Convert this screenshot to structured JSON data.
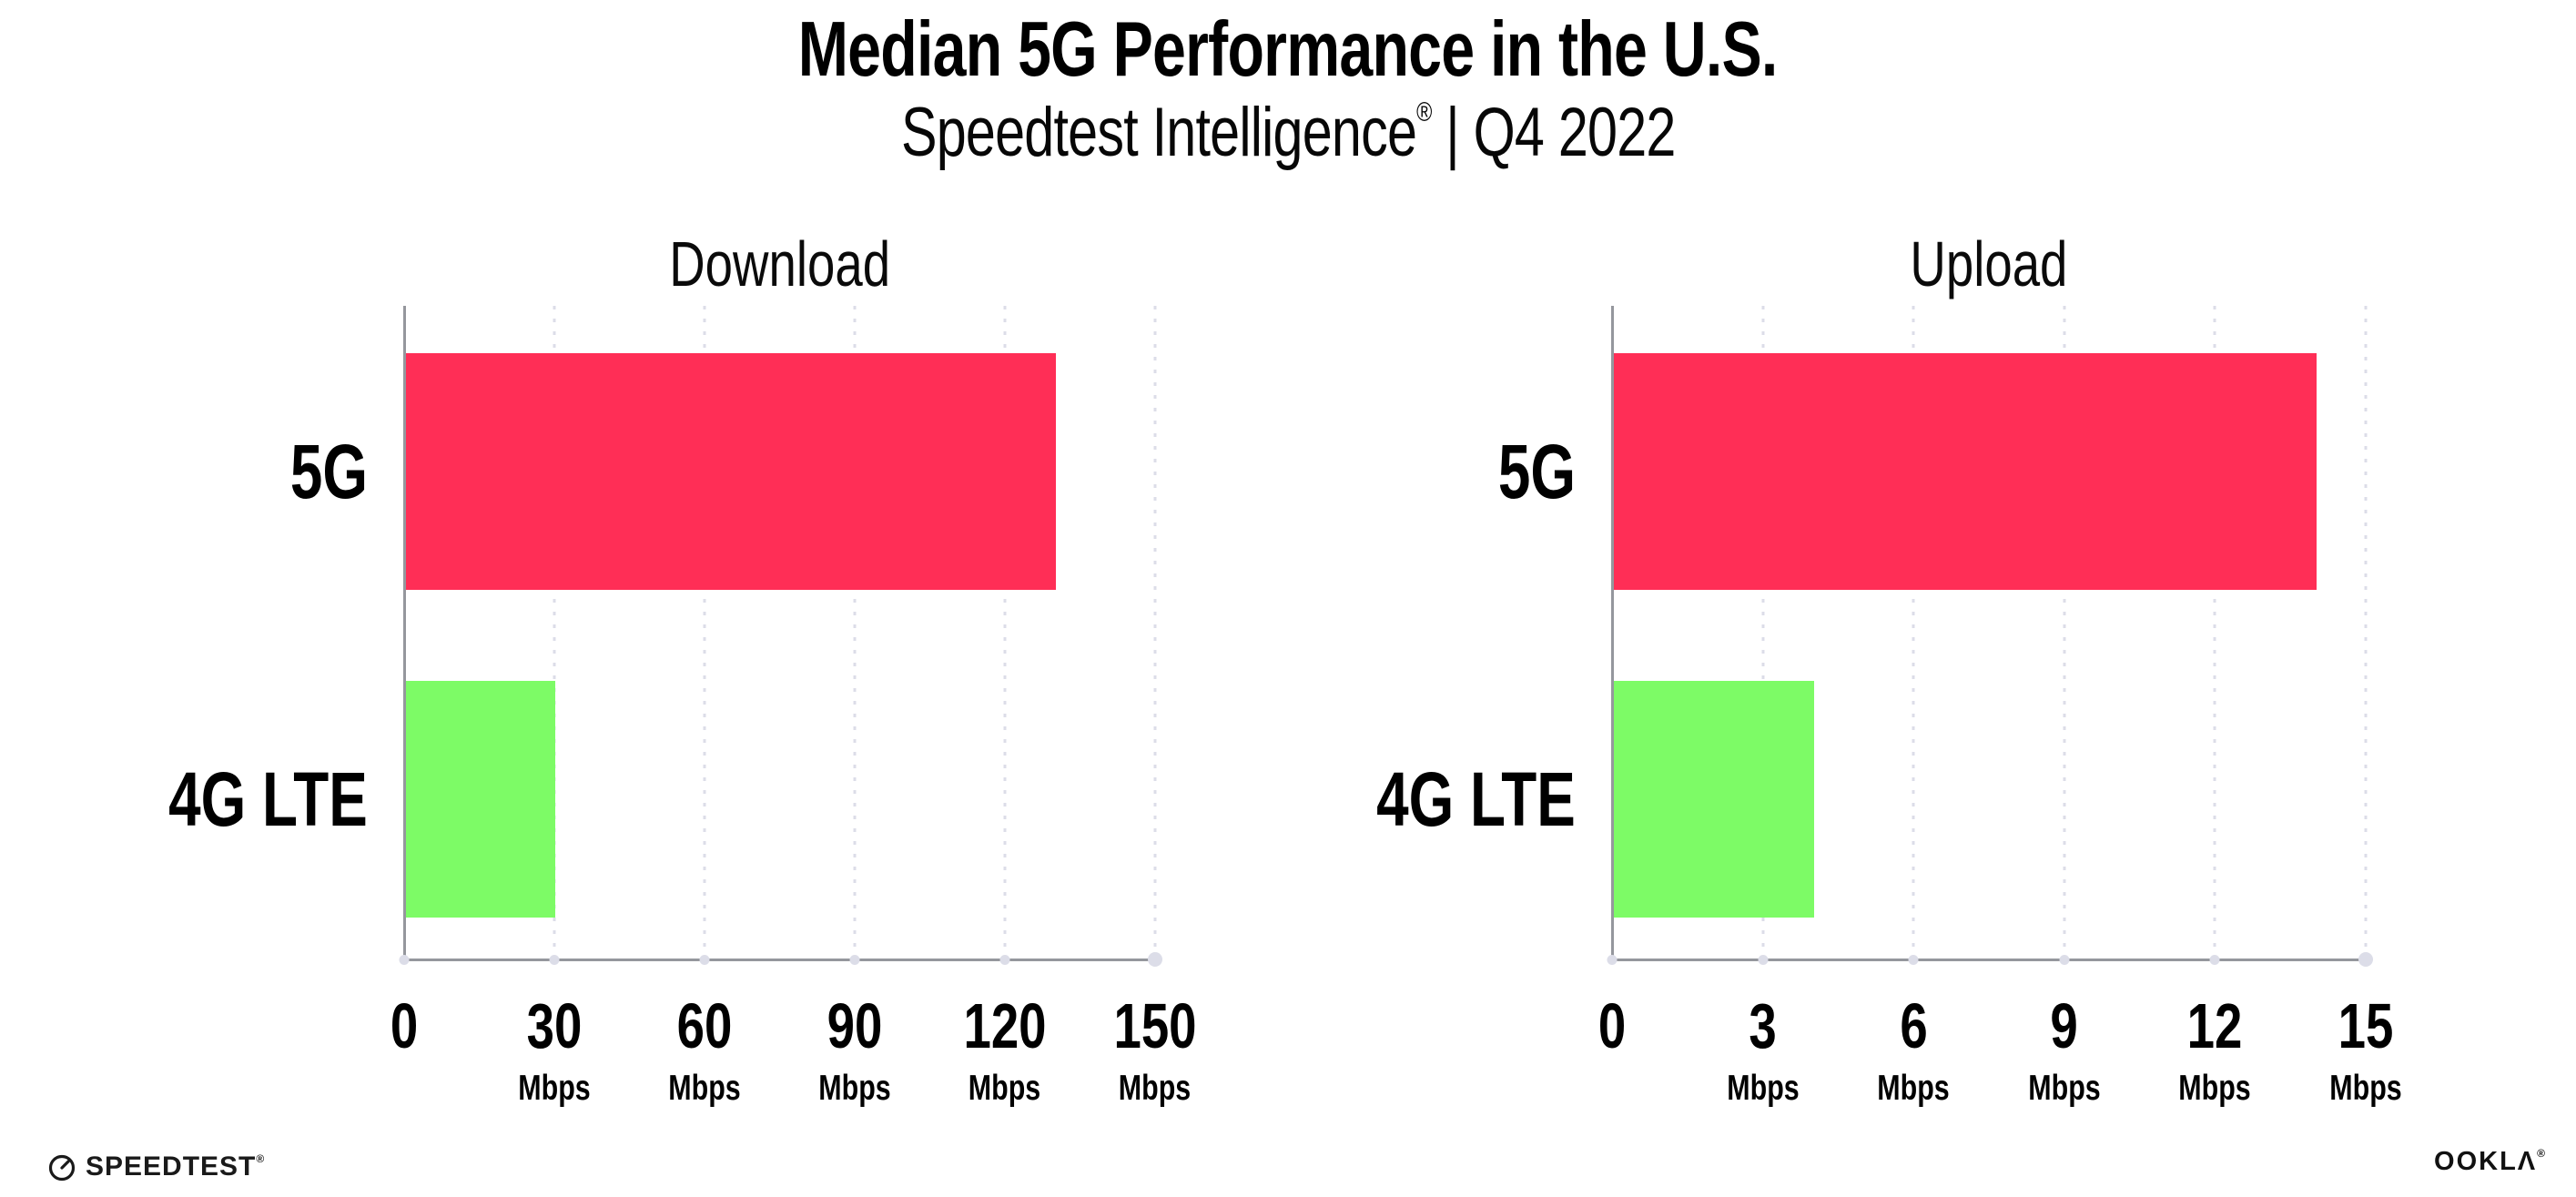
{
  "header": {
    "title": "Median 5G Performance in the U.S.",
    "subtitle_brand": "Speedtest Intelligence",
    "subtitle_mark": "®",
    "subtitle_rest": " | Q4 2022"
  },
  "colors": {
    "bar_5g": "#ff2e56",
    "bar_4g_lte": "#7dfb66",
    "axis": "#95979d",
    "grid_dot": "#dcdde8",
    "text": "#000000"
  },
  "chart_data": [
    {
      "type": "bar",
      "orientation": "horizontal",
      "title": "Download",
      "categories": [
        "5G",
        "4G LTE"
      ],
      "values": [
        130,
        30
      ],
      "unit": "Mbps",
      "xlim": [
        0,
        150
      ],
      "xticks": [
        0,
        30,
        60,
        90,
        120,
        150
      ],
      "grid": "vertical-dotted",
      "legend": "none",
      "bar_colors": [
        "#ff2e56",
        "#7dfb66"
      ]
    },
    {
      "type": "bar",
      "orientation": "horizontal",
      "title": "Upload",
      "categories": [
        "5G",
        "4G LTE"
      ],
      "values": [
        14,
        4
      ],
      "unit": "Mbps",
      "xlim": [
        0,
        15
      ],
      "xticks": [
        0,
        3,
        6,
        9,
        12,
        15
      ],
      "grid": "vertical-dotted",
      "legend": "none",
      "bar_colors": [
        "#ff2e56",
        "#7dfb66"
      ]
    }
  ],
  "footer": {
    "speedtest_label": "SPEEDTEST",
    "speedtest_mark": "®",
    "ookla_label": "OOKLΛ",
    "ookla_mark": "®"
  }
}
